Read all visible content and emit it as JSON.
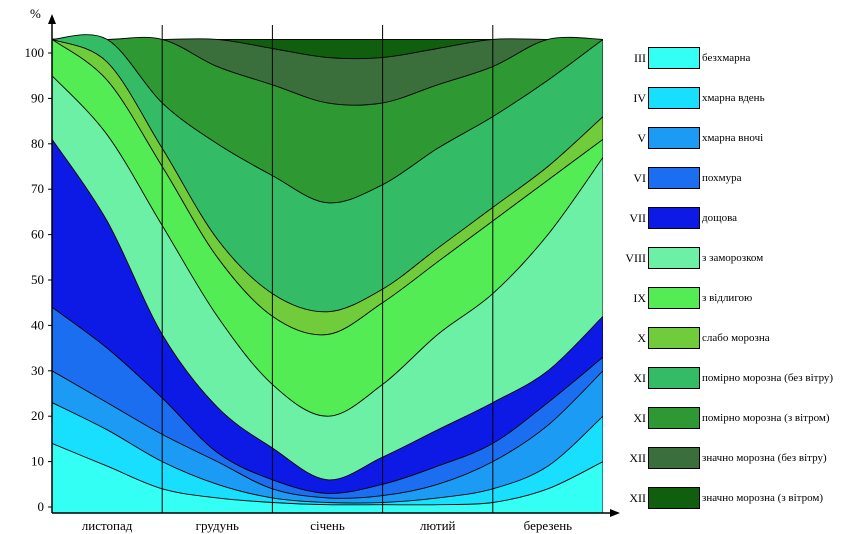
{
  "chart_data": {
    "type": "area",
    "title": "",
    "ylabel": "%",
    "xlabel": "",
    "ylim": [
      0,
      100
    ],
    "yticks": [
      0,
      10,
      20,
      30,
      40,
      50,
      60,
      70,
      80,
      90,
      100
    ],
    "categories": [
      "листопад",
      "грудунь",
      "січень",
      "лютий",
      "березень"
    ],
    "x": [
      0,
      0.5,
      1,
      1.5,
      2,
      2.5,
      3,
      3.5,
      4,
      4.5,
      5
    ],
    "grid": false,
    "legend_position": "right",
    "series": [
      {
        "code": "III",
        "name": "безхмарна",
        "color": "#33FFF5",
        "upper": [
          14,
          9,
          4,
          2,
          1,
          0.5,
          0.5,
          0.5,
          1,
          4,
          10
        ]
      },
      {
        "code": "IV",
        "name": "хмарна вдень",
        "color": "#19DFFF",
        "upper": [
          23,
          17,
          10,
          5,
          2,
          1,
          1,
          2,
          4,
          9,
          20
        ]
      },
      {
        "code": "V",
        "name": "хмарна вночі",
        "color": "#1C9BF5",
        "upper": [
          30,
          23,
          16,
          10,
          4,
          2,
          2.5,
          5,
          10,
          18,
          30
        ]
      },
      {
        "code": "VI",
        "name": "похмура",
        "color": "#1C6EF0",
        "upper": [
          44,
          35,
          24,
          12,
          6,
          3,
          5,
          9,
          14,
          23,
          33
        ]
      },
      {
        "code": "VII",
        "name": "дощова",
        "color": "#0D1AE6",
        "upper": [
          81,
          63,
          38,
          22,
          13,
          6,
          11,
          17,
          23,
          30,
          42
        ]
      },
      {
        "code": "VIII",
        "name": "з заморозком",
        "color": "#6CF0A5",
        "upper": [
          95,
          82,
          62,
          42,
          27,
          20,
          27,
          38,
          47,
          60,
          77
        ]
      },
      {
        "code": "IX",
        "name": "з відлигою",
        "color": "#54EC54",
        "upper": [
          103,
          94,
          75,
          55,
          42,
          38,
          45,
          54,
          63,
          72,
          81
        ]
      },
      {
        "code": "X",
        "name": "слабо морозна",
        "color": "#70CC3A",
        "upper": [
          103,
          98,
          79,
          59,
          47,
          43,
          48,
          57,
          66,
          75,
          86
        ]
      },
      {
        "code": "XI",
        "name": "помірно морозна (без вітру)",
        "color": "#33BB66",
        "upper": [
          103,
          103,
          89,
          80,
          73,
          67,
          71,
          79,
          86,
          94,
          103
        ]
      },
      {
        "code": "XI",
        "name": "помірно морозна (з вітром)",
        "color": "#2E9933",
        "upper": [
          103,
          103,
          103,
          97,
          93,
          89,
          89,
          93,
          97,
          103,
          103
        ]
      },
      {
        "code": "XII",
        "name": "значно морозна (без вітру)",
        "color": "#3A6E3A",
        "upper": [
          103,
          103,
          103,
          103,
          101,
          99,
          99,
          101,
          103,
          103,
          103
        ]
      },
      {
        "code": "XII",
        "name": "значно морозна (з вітром)",
        "color": "#0F5F0F",
        "upper": [
          103,
          103,
          103,
          103,
          103,
          103,
          103,
          103,
          103,
          103,
          103
        ]
      }
    ]
  }
}
